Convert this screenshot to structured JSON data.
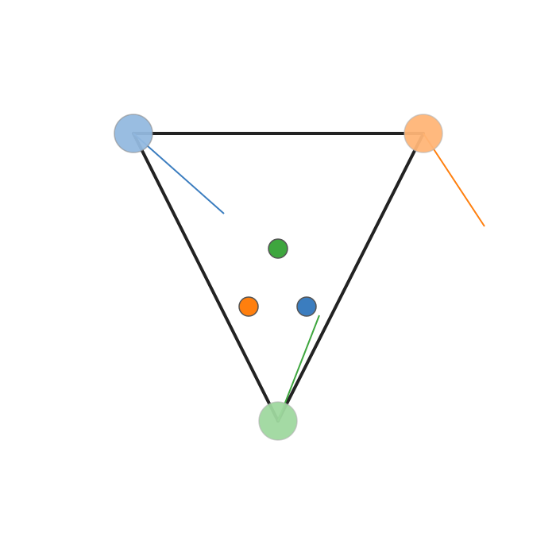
{
  "diagram": {
    "colors": {
      "edge": "#222222",
      "blue": "#3b7dbf",
      "orange": "#ff7f0e",
      "green": "#3ea63e",
      "blue_light": "#94b9df",
      "orange_light": "#ffb577",
      "green_light": "#9fd89f"
    },
    "vertices": [
      {
        "id": "vertex-blue",
        "color_key": "blue_light"
      },
      {
        "id": "vertex-orange",
        "color_key": "orange_light"
      },
      {
        "id": "vertex-green",
        "color_key": "green_light"
      }
    ],
    "inner_nodes": [
      {
        "id": "inner-node-green",
        "color_key": "green"
      },
      {
        "id": "inner-node-orange",
        "color_key": "orange"
      },
      {
        "id": "inner-node-blue",
        "color_key": "blue"
      }
    ]
  }
}
